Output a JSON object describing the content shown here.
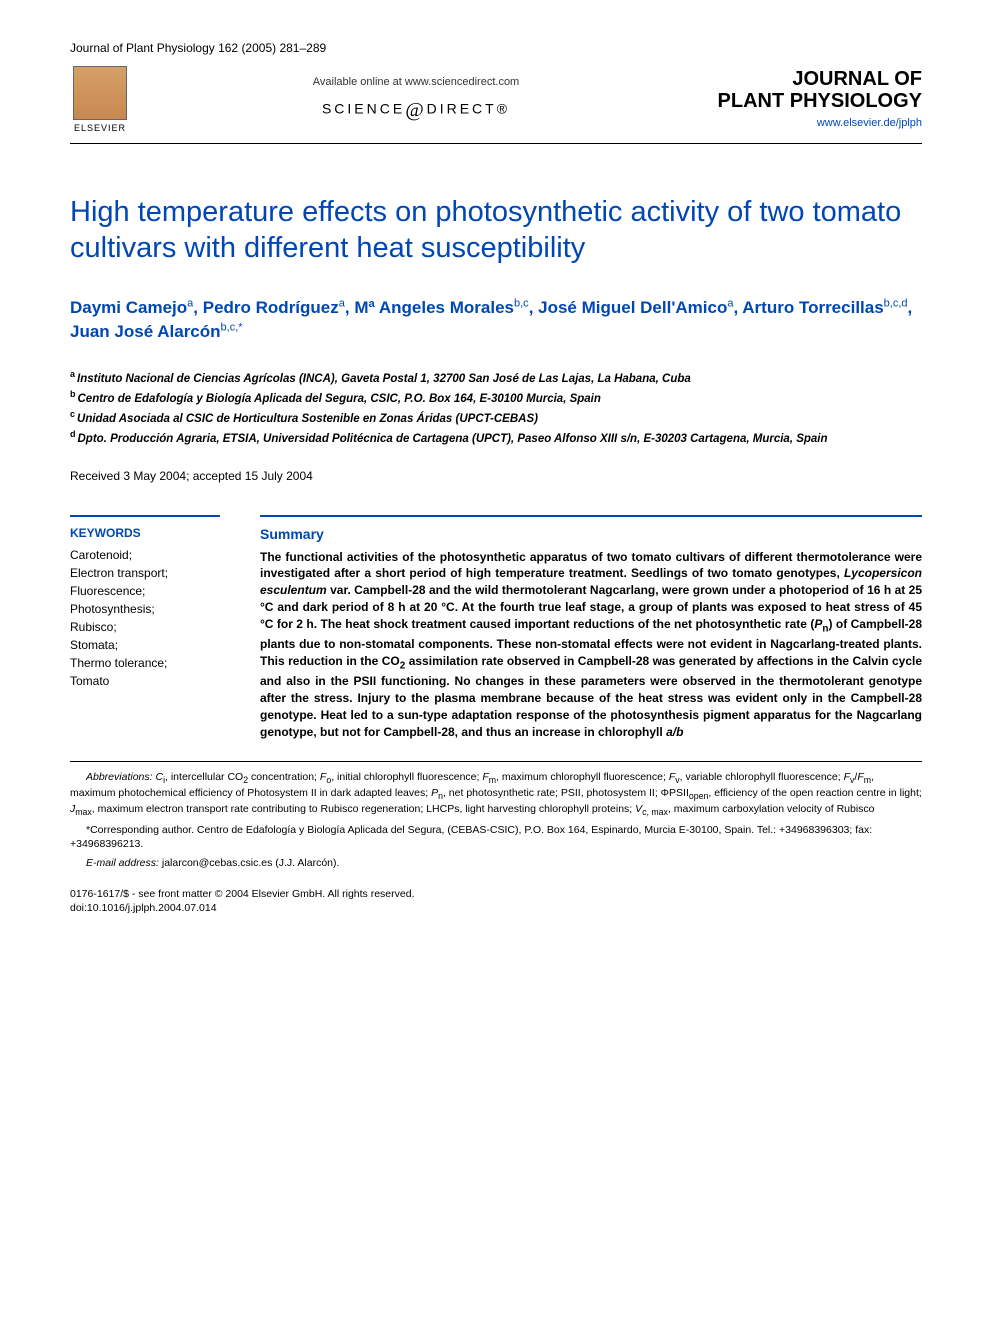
{
  "header": {
    "citation": "Journal of Plant Physiology 162 (2005) 281–289",
    "elsevier_label": "ELSEVIER",
    "available_text": "Available online at www.sciencedirect.com",
    "sciencedirect_prefix": "SCIENCE",
    "sciencedirect_suffix": "DIRECT®",
    "journal_name_line1": "JOURNAL OF",
    "journal_name_line2": "PLANT PHYSIOLOGY",
    "journal_url": "www.elsevier.de/jplph"
  },
  "article": {
    "title": "High temperature effects on photosynthetic activity of two tomato cultivars with different heat susceptibility",
    "authors_html": "Daymi Camejo<sup>a</sup>, Pedro Rodríguez<sup>a</sup>, Mª Angeles Morales<sup>b,c</sup>, José Miguel Dell'Amico<sup>a</sup>, Arturo Torrecillas<sup>b,c,d</sup>, Juan José Alarcón<sup>b,c,*</sup>",
    "affiliations": [
      {
        "sup": "a",
        "text": "Instituto Nacional de Ciencias Agrícolas (INCA), Gaveta Postal 1, 32700 San José de Las Lajas, La Habana, Cuba"
      },
      {
        "sup": "b",
        "text": "Centro de Edafología y Biología Aplicada del Segura, CSIC, P.O. Box 164, E-30100 Murcia, Spain"
      },
      {
        "sup": "c",
        "text": "Unidad Asociada al CSIC de Horticultura Sostenible en Zonas Áridas (UPCT-CEBAS)"
      },
      {
        "sup": "d",
        "text": "Dpto. Producción Agraria, ETSIA, Universidad Politécnica de Cartagena (UPCT), Paseo Alfonso XIII s/n, E-30203 Cartagena, Murcia, Spain"
      }
    ],
    "dates": "Received 3 May 2004; accepted 15 July 2004"
  },
  "keywords": {
    "heading": "KEYWORDS",
    "items": [
      "Carotenoid;",
      "Electron transport;",
      "Fluorescence;",
      "Photosynthesis;",
      "Rubisco;",
      "Stomata;",
      "Thermo tolerance;",
      "Tomato"
    ]
  },
  "summary": {
    "heading": "Summary",
    "text_html": "The functional activities of the photosynthetic apparatus of two tomato cultivars of different thermotolerance were investigated after a short period of high temperature treatment. Seedlings of two tomato genotypes, <em>Lycopersicon esculentum</em> var. Campbell-28 and the wild thermotolerant Nagcarlang, were grown under a photoperiod of 16 h at 25 °C and dark period of 8 h at 20 °C. At the fourth true leaf stage, a group of plants was exposed to heat stress of 45 °C for 2 h. The heat shock treatment caused important reductions of the net photosynthetic rate (<em>P</em><sub>n</sub>) of Campbell-28 plants due to non-stomatal components. These non-stomatal effects were not evident in Nagcarlang-treated plants. This reduction in the CO<sub>2</sub> assimilation rate observed in Campbell-28 was generated by affections in the Calvin cycle and also in the PSII functioning. No changes in these parameters were observed in the thermotolerant genotype after the stress. Injury to the plasma membrane because of the heat stress was evident only in the Campbell-28 genotype. Heat led to a sun-type adaptation response of the photosynthesis pigment apparatus for the Nagcarlang genotype, but not for Campbell-28, and thus an increase in chlorophyll <em>a/b</em>"
  },
  "footer": {
    "abbreviations_html": "<em>Abbreviations:</em> <em>C</em><sub>i</sub>, intercellular CO<sub>2</sub> concentration; <em>F</em><sub>o</sub>, initial chlorophyll fluorescence; <em>F</em><sub>m</sub>, maximum chlorophyll fluorescence; <em>F</em><sub>v</sub>, variable chlorophyll fluorescence; <em>F</em><sub>v</sub>/<em>F</em><sub>m</sub>, maximum photochemical efficiency of Photosystem II in dark adapted leaves; <em>P</em><sub>n</sub>, net photosynthetic rate; PSII, photosystem II; ΦPSII<sub>open</sub>, efficiency of the open reaction centre in light; <em>J</em><sub>max</sub>, maximum electron transport rate contributing to Rubisco regeneration; LHCPs, light harvesting chlorophyll proteins; <em>V</em><sub>c, max</sub>, maximum carboxylation velocity of Rubisco",
    "corresponding_html": "*Corresponding author. Centro de Edafología y Biología Aplicada del Segura, (CEBAS-CSIC), P.O. Box 164, Espinardo, Murcia E-30100, Spain. Tel.: +34968396303; fax: +34968396213.",
    "email_html": "<em>E-mail address:</em> jalarcon@cebas.csic.es (J.J. Alarcón).",
    "copyright": "0176-1617/$ - see front matter © 2004 Elsevier GmbH. All rights reserved.",
    "doi": "doi:10.1016/j.jplph.2004.07.014"
  },
  "colors": {
    "brand_blue": "#0047b5",
    "text_black": "#000000",
    "background": "#ffffff",
    "elsevier_orange": "#c88850"
  },
  "typography": {
    "title_fontsize": 29,
    "authors_fontsize": 17,
    "body_fontsize": 12,
    "footer_fontsize": 10.5,
    "journal_brand_fontsize": 20
  }
}
